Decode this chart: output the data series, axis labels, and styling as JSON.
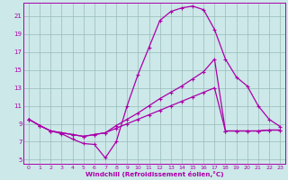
{
  "xlabel": "Windchill (Refroidissement éolien,°C)",
  "background_color": "#cce8e8",
  "line_color": "#aa00aa",
  "grid_color": "#99bbbb",
  "xlim": [
    -0.5,
    23.5
  ],
  "ylim": [
    4.5,
    22.5
  ],
  "xticks": [
    0,
    1,
    2,
    3,
    4,
    5,
    6,
    7,
    8,
    9,
    10,
    11,
    12,
    13,
    14,
    15,
    16,
    17,
    18,
    19,
    20,
    21,
    22,
    23
  ],
  "yticks": [
    5,
    7,
    9,
    11,
    13,
    15,
    17,
    19,
    21
  ],
  "line1_x": [
    0,
    1,
    2,
    3,
    4,
    5,
    6,
    7,
    8,
    9,
    10,
    11,
    12,
    13,
    14,
    15,
    16,
    17,
    18,
    19,
    20,
    21,
    22,
    23
  ],
  "line1_y": [
    9.5,
    8.8,
    8.2,
    7.9,
    7.3,
    6.8,
    6.7,
    5.2,
    7.0,
    11.0,
    14.5,
    17.5,
    20.5,
    21.5,
    21.9,
    22.1,
    21.7,
    19.5,
    16.2,
    14.2,
    13.2,
    11.0,
    9.5,
    8.7
  ],
  "line2_x": [
    0,
    1,
    2,
    3,
    4,
    5,
    6,
    7,
    8,
    9,
    10,
    11,
    12,
    13,
    14,
    15,
    16,
    17,
    18,
    19,
    20,
    21,
    22,
    23
  ],
  "line2_y": [
    9.5,
    8.8,
    8.2,
    8.0,
    7.8,
    7.6,
    7.8,
    8.0,
    8.8,
    9.5,
    10.2,
    11.0,
    11.8,
    12.5,
    13.2,
    14.0,
    14.8,
    16.2,
    8.2,
    8.2,
    8.2,
    8.2,
    8.3,
    8.3
  ],
  "line3_x": [
    0,
    1,
    2,
    3,
    4,
    5,
    6,
    7,
    8,
    9,
    10,
    11,
    12,
    13,
    14,
    15,
    16,
    17,
    18,
    19,
    20,
    21,
    22,
    23
  ],
  "line3_y": [
    9.5,
    8.8,
    8.2,
    8.0,
    7.8,
    7.6,
    7.8,
    8.0,
    8.5,
    9.0,
    9.5,
    10.0,
    10.5,
    11.0,
    11.5,
    12.0,
    12.5,
    13.0,
    8.2,
    8.2,
    8.2,
    8.2,
    8.3,
    8.3
  ]
}
